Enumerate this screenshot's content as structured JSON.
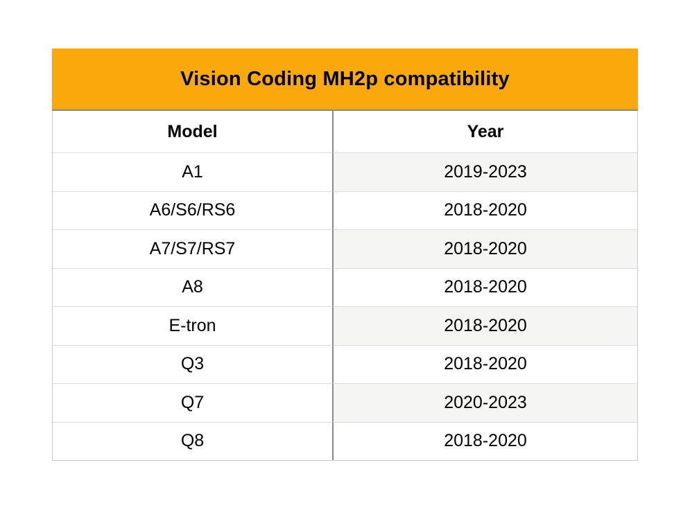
{
  "chart_data": {
    "type": "table",
    "title": "Vision Coding MH2p compatibility",
    "columns": [
      "Model",
      "Year"
    ],
    "rows": [
      [
        "A1",
        "2019-2023"
      ],
      [
        "A6/S6/RS6",
        "2018-2020"
      ],
      [
        "A7/S7/RS7",
        "2018-2020"
      ],
      [
        "A8",
        "2018-2020"
      ],
      [
        "E-tron",
        "2018-2020"
      ],
      [
        "Q3",
        "2018-2020"
      ],
      [
        "Q7",
        "2020-2023"
      ],
      [
        "Q8",
        "2018-2020"
      ]
    ],
    "layout": {
      "striped_column": "Year",
      "stripe_pattern": "odd-data-rows"
    },
    "colors": {
      "title_bg": "#fba80d",
      "stripe_bg": "#f5f5f3",
      "divider_dark": "#8a8a86",
      "divider_light": "#dcdcda",
      "outer_border": "#c9c9c9",
      "text": "#000000"
    }
  }
}
